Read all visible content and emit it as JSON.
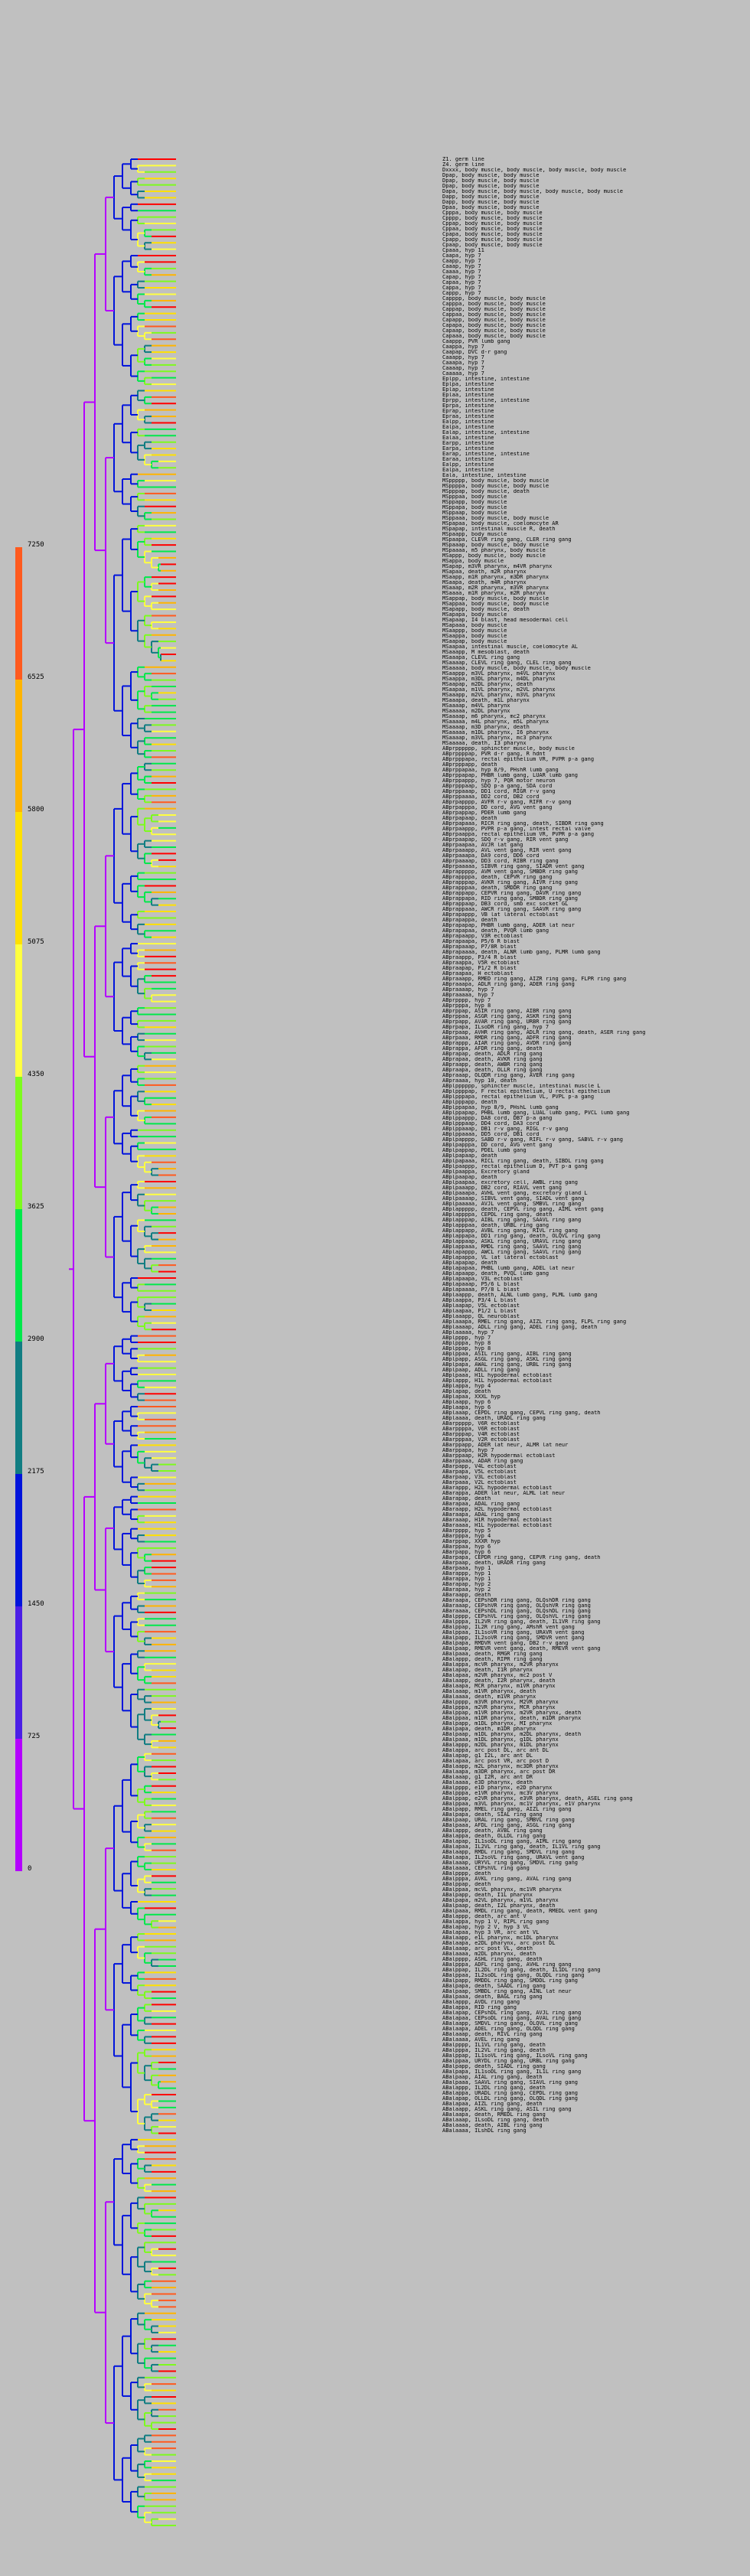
{
  "header": {
    "lines": [
      "Z1. germ line",
      "Z4. germ line"
    ]
  },
  "legend": {
    "ticks": [
      "7250",
      "6525",
      "5800",
      "5075",
      "4350",
      "3625",
      "2900",
      "2175",
      "1450",
      "725",
      "0"
    ],
    "colors": [
      "#ff5a1e",
      "#ffb400",
      "#ffe000",
      "#ffff40",
      "#7dfa1e",
      "#00e84b",
      "#117d82",
      "#0014dc",
      "#4b1ee6",
      "#b400ff"
    ]
  },
  "tree_colors": [
    "#b400ff",
    "#0014dc",
    "#117d82",
    "#00e84b",
    "#7dfa1e",
    "#ffff40",
    "#ffe000",
    "#ffb400",
    "#ff5a1e",
    "#ff0000"
  ],
  "labels": [
    "Dxxxx, body muscle, body muscle, body muscle, body muscle",
    "Dpap, body muscle, body muscle",
    "Dpap, body muscle, body muscle",
    "Dpap, body muscle, body muscle",
    "Dapa, body muscle, body muscle, body muscle, body muscle",
    "Dapp, body muscle, body muscle",
    "Dapp, body muscle, body muscle",
    "Dpaa, body muscle, body muscle",
    "Cpppa, body muscle, body muscle",
    "Cpppp, body muscle, body muscle",
    "Cppap, body muscle, body muscle",
    "Cppaa, body muscle, body muscle",
    "Cpapa, body muscle, body muscle",
    "Cpapp, body muscle, body muscle",
    "Cpaap, body muscle, body muscle",
    "Cpaaa, hyp 11",
    "Caapa, hyp 7",
    "Caapp, hyp 7",
    "Caaap, hyp 7",
    "Caaaa, hyp 7",
    "Capap, hyp 7",
    "Capaa, hyp 7",
    "Cappa, hyp 7",
    "Cappp, hyp 7",
    "Capppp, body muscle, body muscle",
    "Capppa, body muscle, body muscle",
    "Cappap, body muscle, body muscle",
    "Cappaa, body muscle, body muscle",
    "Capapp, body muscle, body muscle",
    "Capapa, body muscle, body muscle",
    "Capaap, body muscle, body muscle",
    "Capaaa, body muscle, body muscle",
    "Caappp, PVR lumb gang",
    "Caappa, hyp 7",
    "Caapap, DVC d-r gang",
    "Caaapp, hyp 7",
    "Caaapa, hyp 7",
    "Caaaap, hyp 7",
    "Caaaaa, hyp 7",
    "Eplpp, intestine, intestine",
    "Eplpa, intestine",
    "Eplap, intestine",
    "Eplaa, intestine",
    "Eprpp, intestine, intestine",
    "Eprpa, intestine",
    "Eprap, intestine",
    "Epraa, intestine",
    "Ealpp, intestine",
    "Ealpa, intestine",
    "Ealap, intestine, intestine",
    "Ealaa, intestine",
    "Earpp, intestine",
    "Earpa, intestine",
    "Earap, intestine, intestine",
    "Earaa, intestine",
    "Ealpp, intestine",
    "Ealpa, intestine",
    "Eala, intestine, intestine",
    "MSppppp, body muscle, body muscle",
    "MSppppa, body muscle, body muscle",
    "MSpppap, body muscle, death",
    "MSpppaa, body muscle",
    "MSppapp, body muscle",
    "MSppapa, body muscle",
    "MSppaap, body muscle",
    "MSppaaa, body muscle, body muscle",
    "MSpapaa, body muscle, coelomocyte AR",
    "MSpapap, intestinal muscle R, death",
    "MSpaapp, body muscle",
    "MSpaapa, CLEVR ring gang, CLER ring gang",
    "MSpaaap, body muscle, body muscle",
    "MSpaaaa, m5 pharynx, body muscle",
    "MSappp, body muscle, body muscle",
    "MSappa, body muscle",
    "MSapap, m3VR pharynx, m4VR pharynx",
    "MSapaa, death, m2R pharynx",
    "MSaapp, m1R pharynx, m3DR pharynx",
    "MSaapa, death, m4R pharynx",
    "MSaaap, m2R pharynx, m3VR pharynx",
    "MSaaaa, m1R pharynx, m2R pharynx",
    "MSappap, body muscle, body muscle",
    "MSappaa, body muscle, body muscle",
    "MSapapp, body muscle, death",
    "MSapapa, body muscle",
    "MSapaap, I4 blast, head mesodermal cell",
    "MSapaaa, body muscle",
    "MSaappp, body muscle",
    "MSaappa, body muscle",
    "MSaapap, body muscle",
    "MSaapaa, intestinal muscle, coelomocyte AL",
    "MSaaapp, M mesoblast, death",
    "MSaaapa, CLEVL ring gang",
    "MSaaaap, CLEVL ring gang, CLEL ring gang",
    "MSaaaaa, body muscle, body muscle, body muscle",
    "MSaappp, m3VL pharynx, m4VL pharynx",
    "MSaappa, m3DL pharynx, m4DL pharynx",
    "MSaapap, m2DL pharynx, death",
    "MSaapaa, m1VL pharynx, m2VL pharynx",
    "MSaaapp, m2VL pharynx, m3VL pharynx",
    "MSaaapa, death, m1L pharynx",
    "MSaaaap, m4VL pharynx",
    "MSaaaaa, m2DL pharynx",
    "MSaaaap, m6 pharynx, mc2 pharynx",
    "MSaaaaa, m4L pharynx, m5L pharynx",
    "MSaaaap, m3D pharynx, death",
    "MSaaaaa, m1DL pharynx, I6 pharynx",
    "MSaaaap, m3VL pharynx, mc3 pharynx",
    "MSaaaaa, death, I3 pharynx",
    "ABprpppppp, sphincter muscle, body muscle",
    "ABprppppap, PVR d-r gang, R hdnt",
    "ABprpppapa, rectal epithelium VR, PVPR p-a gang",
    "ABprpppapp, death",
    "ABprppapaa, hyp 8/9, PHshR lumb gang",
    "ABprppapap, PHBR lumb gang, LUAR lumb gang",
    "ABprppappp, hyp 7, PQR motor neuron",
    "ABprpppaap, SDQ p-a gang, SDA cord",
    "ABprppaaap, DD1 cord, RIGR r-v gang",
    "ABprppaaaa, DD2 cord, DB2 cord",
    "ABprpapppp, AVFR r-v gang, RIFR r-v gang",
    "ABprpapppa, DD cord, AVG vent gang",
    "ABprpappap, PDER lumb gang",
    "ABprpapaap, death",
    "ABprpapaaa, RICR ring gang, death, SIBDR ring gang",
    "ABprpaappp, PVPR p-a gang, intest rectal valve",
    "ABprpaappa, rectal epithelium VR, PVPR p-a gang",
    "ABprpaapap, SDQ r-v gang, RIR vent gang",
    "ABprpaapaa, AVJR lat gang",
    "ABprpaaapp, AVL vent gang, RIR vent gang",
    "ABprpaaapa, DA9 cord, DD6 cord",
    "ABprpaaaap, DD3 cord, RIBR ring gang",
    "ABprpaaaaa, SIBVR ring gang, SIADR vent gang",
    "ABprappppp, AVM vent gang, SMBDR ring gang",
    "ABprappppa, death, CEPVR ring gang",
    "ABprapppap, AVKR ring gang, AIVR ring gang",
    "ABprapppaa, death, SMDDR ring gang",
    "ABprappapp, CEPVR ring gang, DAVR ring gang",
    "ABprappapa, RID ring gang, SMBDR ring gang",
    "ABprappaap, DB3 cord, smb exc socket GL",
    "ABprappaaa, AWCR ring gang, SAAVR ring gang",
    "ABprapappp, VB lat lateral ectoblast",
    "ABprapappa, death",
    "ABprapapap, PHBR lumb gang, ADER lat neur",
    "ABprapapaa, death, PVQR lumb gang",
    "ABprapaapp, V3R ectoblast",
    "ABprapaapa, P5/6 R blast",
    "ABprapaaap, P7/8R blast",
    "ABprapaaaa, death, ALNR lumb gang, PLMR lumb gang",
    "ABpraappp, P3/4 R blast",
    "ABpraappa, V5R ectoblast",
    "ABpraapap, P1/2 R blast",
    "ABpraapaa, H ectoblast",
    "ABpraaapp, RMED ring gang, AIZR ring gang, FLPR ring gang",
    "ABpraaapa, ADLR ring gang, ADER ring gang",
    "ABpraaaap, hyp 7",
    "ABpraaaaa, hyp 7",
    "ABprpppp, hyp 7",
    "ABprpppa, hyp 8",
    "ABprppap, ASIR ring gang, AIBR ring gang",
    "ABprppaa, ASGR ring gang, ASKR ring gang",
    "ABprpapp, AVAR ring gang, URBR ring gang",
    "ABprpapa, ILsoDR ring gang, hyp 7",
    "ABprpaap, AVHR ring gang, ADLR ring gang, death, ASER ring gang",
    "ABprpaaa, RMDR ring gang, ADFR ring gang",
    "ABprappp, AIAR ring gang, AVDR ring gang",
    "ABprappa, AFDR ring gang, death",
    "ABprapap, death, ADLR ring gang",
    "ABprapaa, death, AVKR ring gang",
    "ABpraapp, death, AWBR ring gang",
    "ABpraapa, death, OLLR ring gang",
    "ABpraaap, OLQDR ring gang, AVER ring gang",
    "ABpraaaa, hyp 10, death",
    "ABplpppppp, sphincter muscle, intestinal muscle L",
    "ABplppppap, F rectal epithelium, U rectal epithelium",
    "ABplpppapa, rectal epithelium VL, PVPL p-a gang",
    "ABplpppapp, death",
    "ABplppapaa, hyp 8/9, PHshL lumb gang",
    "ABplppapap, PHBL lumb gang, LUAL lumb gang, PVCL lumb gang",
    "ABplppappp, DA8 cord, DB7 p-a gang",
    "ABplpppaap, DD4 cord, DA3 cord",
    "ABplppaaap, DB1 r-v gang, RIGL r-v gang",
    "ABplppaaaa, DD5 cord, DB1 cord",
    "ABplpapppp, SABD r-v gang, RIFL r-v gang, SABVL r-v gang",
    "ABplpapppa, DD cord, AVG vent gang",
    "ABplpappap, PDEL lumb gang",
    "ABplpapaap, death",
    "ABplpapaaa, RICL ring gang, death, SIBDL ring gang",
    "ABplpaappp, rectal epithelium D, PVT p-a gang",
    "ABplpaappa, Excretory gland",
    "ABplpaapap, death",
    "ABplpaapaa, excretory cell, AWBL ring gang",
    "ABplpaaapp, DB2 cord, RIAVL vent gang",
    "ABplpaaapa, AVHL vent gang, excretory gland L",
    "ABplpaaaap, SIBVL vent gang, SIADL vent gang",
    "ABplpaaaaa, AVJL vent gang, SMBVL ring gang",
    "ABplappppp, death, CEPVL ring gang, AIML vent gang",
    "ABplappppa, CEPDL ring gang, death",
    "ABplapppap, AIBL ring gang, SAAVL ring gang",
    "ABplapppaa, death, URBL ring gang",
    "ABplappapp, AVBL ring gang, RIVL ring gang",
    "ABplappapa, DD1 ring gang, death, OLQVL ring gang",
    "ABplappaap, ASKL ring gang, URAVL ring gang",
    "ABplappaaa, RMDL ring gang, SAAVL ring gang",
    "ABplapappp, AWCL ring gang, SAAVL ring gang",
    "ABplapappa, VL lat lateral ectoblast",
    "ABplapapap, death",
    "ABplapapaa, PHBL lumb gang, ADEL lat neur",
    "ABplapaapp, death, PVQL lumb gang",
    "ABplapaapa, V3L ectoblast",
    "ABplapaaap, P5/6 L blast",
    "ABplapaaaa, P7/8 L blast",
    "ABplaappp, death, ALNL lumb gang, PLML lumb gang",
    "ABplaappa, P3/4 L blast",
    "ABplaapap, V5L ectoblast",
    "ABplaapaa, P1/2 L blast",
    "ABplaaapp, QL neuroblast",
    "ABplaaapa, RMEL ring gang, AIZL ring gang, FLPL ring gang",
    "ABplaaaap, ADLL ring gang, ADEL ring gang, death",
    "ABplaaaaa, hyp 7",
    "ABplpppp, hyp 7",
    "ABplpppa, hyp 8",
    "ABplppap, hyp 8",
    "ABplppaa, ASIL ring gang, AIBL ring gang",
    "ABplpapp, ASGL ring gang, ASKL ring gang",
    "ABplpapa, AWAL ring gang, URBL ring gang",
    "ABplpaap, ADLL ring gang",
    "ABplpaaa, H1L hypodermal ectoblast",
    "ABplappp, H1L hypodermal ectoblast",
    "ABplappa, hyp 4",
    "ABplapap, death",
    "ABplapaa, XXXL hyp",
    "ABplaapp, hyp 6",
    "ABplaapa, hyp 6",
    "ABplaaap, CEPDL ring gang, CEPVL ring gang, death",
    "ABplaaaa, death, URADL ring gang",
    "ABarppppp, V6R ectoblast",
    "ABarppppa, V6R ectoblast",
    "ABarpppap, V4R ectoblast",
    "ABarpppaa, V2R ectoblast",
    "ABarppapp, ADER lat neur, ALMR lat neur",
    "ABarppapa, hyp 7",
    "ABarppaap, H2R hypodermal ectoblast",
    "ABarppaaa, ADAR ring gang",
    "ABarpapp, V4L ectoblast",
    "ABarpapa, V5L ectoblast",
    "ABarpaap, V3L ectoblast",
    "ABarpaaa, V2L ectoblast",
    "ABarappp, H2L hypodermal ectoblast",
    "ABarappa, ADER lat neur, ALML lat neur",
    "ABarapap, death",
    "ABarapaa, ADAL ring gang",
    "ABaraapp, H2L hypodermal ectoblast",
    "ABaraapa, ADAL ring gang",
    "ABaraaap, H1R hypodermal ectoblast",
    "ABaraaaa, H1L hypodermal ectoblast",
    "ABarpppp, hyp 5",
    "ABarpppa, hyp 4",
    "ABarppap, XXXR hyp",
    "ABarppaa, hyp 6",
    "ABarpapp, hyp 6",
    "ABarpapa, CEPDR ring gang, CEPVR ring gang, death",
    "ABarpaap, death, URADR ring gang",
    "ABarpaaa, hyp 1",
    "ABarappp, hyp 1",
    "ABarappa, hyp 1",
    "ABarapap, hyp 2",
    "ABarapaa, hyp 2",
    "ABaraapp, death",
    "ABaraapa, CEPshDR ring gang, OLQshDR ring gang",
    "ABaraaap, CEPshVR ring gang, OLQshVR ring gang",
    "ABaraaaa, CEPshDL ring gang, OLQshDL ring gang",
    "ABalpppp, CEPshVL ring gang, OLQshVL ring gang",
    "ABalpppa, IL2VR ring gang, death, IL1VR ring gang",
    "ABalppap, IL2R ring gang, AMshR vent gang",
    "ABalppaa, IL1soVR ring gang, URAVR vent gang",
    "ABalpapp, IL2soVR ring gang, SMDVR vent gang",
    "ABalpapa, RMDVR vent gang, DB2 r-v gang",
    "ABalpaap, RMEVR vent gang, death, RMEVR vent gang",
    "ABalpaaa, death, RMGR ring gang",
    "ABalappp, death, RIPR ring gang",
    "ABalappa, mcVR pharynx, m2VR pharynx",
    "ABalapap, death, I1R pharynx",
    "ABalapaa, m2VR pharynx, mc2 post V",
    "ABalaapp, death, I2R pharynx, death",
    "ABalaapa, MCR pharynx, m1VR pharynx",
    "ABalaaap, m1VR pharynx, death",
    "ABalaaaa, death, m1VR pharynx",
    "ABalpppp, m3VR pharynx, M2VR pharynx",
    "ABalpppa, m2VR pharynx, MCR pharynx",
    "ABalppap, m1VR pharynx, m2VR pharynx, death",
    "ABalppaa, m1DR pharynx, death, m1DR pharynx",
    "ABalpapp, m1DL pharynx, MI pharynx",
    "ABalpapa, death, m1DR pharynx",
    "ABalpaap, m1DL pharynx, m2DL pharynx, death",
    "ABalpaaa, m1DL pharynx, g1DL pharynx",
    "ABalappp, m2DL pharynx, m1DL pharynx",
    "ABalappa, arc post DL, arc ant DL",
    "ABalapap, g1 I2L, arc ant DL",
    "ABalapaa, arc post VR, arc post D",
    "ABalaapp, m2L pharynx, mc3DR pharynx",
    "ABalaapa, m3DR pharynx, arc post DR",
    "ABalaaap, g1 I2R, arc ant DR",
    "ABalaaaa, e3D pharynx, death",
    "ABalpppp, e1D pharynx, e2D pharynx",
    "ABalpppa, e1VR pharynx, mc3V pharynx",
    "ABalppap, e2VR pharynx, e3VR pharynx, death, ASEL ring gang",
    "ABalppaa, m3VL pharynx, mc1V pharynx, e1V pharynx",
    "ABalpapp, RMEL ring gang, AIZL ring gang",
    "ABalpapa, death, SIAL ring gang",
    "ABalpaap, URAL ring gang, SMBVL ring gang",
    "ABalpaaa, AFDL ring gang, ASGL ring gang",
    "ABalappp, death, AVBL ring gang",
    "ABalappa, death, OLLDL ring gang",
    "ABalapap, IL1soDL ring gang, AIML ring gang",
    "ABalapaa, IL2VL ring gang, death, IL1VL ring gang",
    "ABalaapp, RMDL ring gang, SMDVL ring gang",
    "ABalaapa, IL2soVL ring gang, URAVL vent gang",
    "ABalaaap, URYVL ring gang, SMDVL ring gang",
    "ABalaaaa, CEPshVL ring gang",
    "ABalpppp, death",
    "ABalpppa, AVKL ring gang, AVAL ring gang",
    "ABalppap, death",
    "ABalppaa, mcVL pharynx, mc1VR pharynx",
    "ABalpapp, death, I1L pharynx",
    "ABalpapa, m2VL pharynx, m1VL pharynx",
    "ABalpaap, death, I2L pharynx, death",
    "ABalpaaa, RMDL ring gang, death, RMEDL vent gang",
    "ABalappp, death, arc ant V",
    "ABalappa, hyp 1 V, RIPL ring gang",
    "ABalapap, hyp 2 V, hyp 3 VL",
    "ABalapaa, hyp 3 VR, arc ant VL",
    "ABalaapp, e1L pharynx, mc1DL pharynx",
    "ABalaapa, e2DL pharynx, arc post DL",
    "ABalaaap, arc post VL, death",
    "ABalaaaa, m2DL pharynx, death",
    "ABalpppp, ASHL ring gang, death",
    "ABalpppa, ADFL ring gang, AVHL ring gang",
    "ABalppap, IL2DL ring gang, death, IL1DL ring gang",
    "ABalppaa, IL2soDL ring gang, OLQDL ring gang",
    "ABalpapp, RMDDL ring gang, SMDDL ring gang",
    "ABalpapa, death, SAADL ring gang",
    "ABalpaap, SMBDL ring gang, AINL lat neur",
    "ABalpaaa, death, BAGL ring gang",
    "ABalappp, AVDL ring gang",
    "ABalappa, RID ring gang",
    "ABalapap, CEPshDL ring gang, AVJL ring gang",
    "ABalapaa, CEPsoDL ring gang, AVAL ring gang",
    "ABalaapp, SMDVL ring gang, OLQVL ring gang",
    "ABalaapa, ADEL ring gang, OLQDL ring gang",
    "ABalaaap, death, RIVL ring gang",
    "ABalaaaa, AVEL ring gang",
    "ABalpppp, IL1VL ring gang, death",
    "ABalpppa, IL2VL ring gang, death",
    "ABalppap, IL1soVL ring gang, ILsoVL ring gang",
    "ABalppaa, URYDL ring gang, URBL ring gang",
    "ABalpapp, death, SIADL ring gang",
    "ABalpapa, IL1soDL ring gang, IL1L ring gang",
    "ABalpaap, AIAL ring gang, death",
    "ABalpaaa, SAAVL ring gang, SIAVL ring gang",
    "ABalappp, IL2DL ring gang, death",
    "ABalappa, URADL ring gang, CEPDL ring gang",
    "ABalapap, OLLDL ring gang, OLQDL ring gang",
    "ABalapaa, AIZL ring gang, death",
    "ABalaapp, ASKL ring gang, ASIL ring gang",
    "ABalaapa, death, RMEDL ring gang",
    "ABalaaap, ILsoDL ring gang, death",
    "ABalaaaa, death, AIBL ring gang",
    "ABalaaaa, ILshDL ring gang"
  ]
}
